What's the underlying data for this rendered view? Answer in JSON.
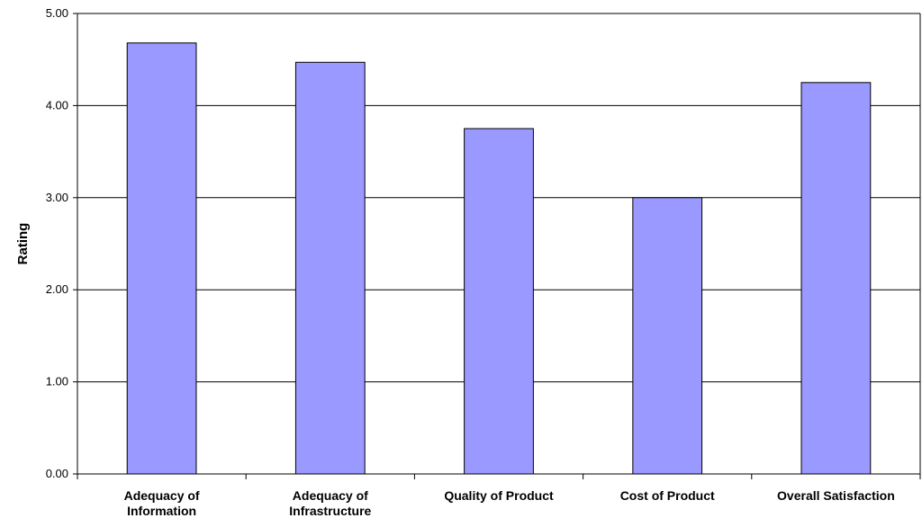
{
  "chart_data": {
    "type": "bar",
    "title": "",
    "xlabel": "",
    "ylabel": "Rating",
    "categories": [
      [
        "Adequacy of",
        "Information"
      ],
      [
        "Adequacy of",
        "Infrastructure"
      ],
      [
        "Quality of Product"
      ],
      [
        "Cost of Product"
      ],
      [
        "Overall Satisfaction"
      ]
    ],
    "values": [
      4.68,
      4.47,
      3.75,
      3.0,
      4.25
    ],
    "ylim": [
      0,
      5
    ],
    "yticks": [
      "0.00",
      "1.00",
      "2.00",
      "3.00",
      "4.00",
      "5.00"
    ],
    "grid": true,
    "legend": "none",
    "colors": {
      "bar_fill": "#9999ff",
      "bar_stroke": "#000000",
      "grid": "#000000"
    }
  }
}
